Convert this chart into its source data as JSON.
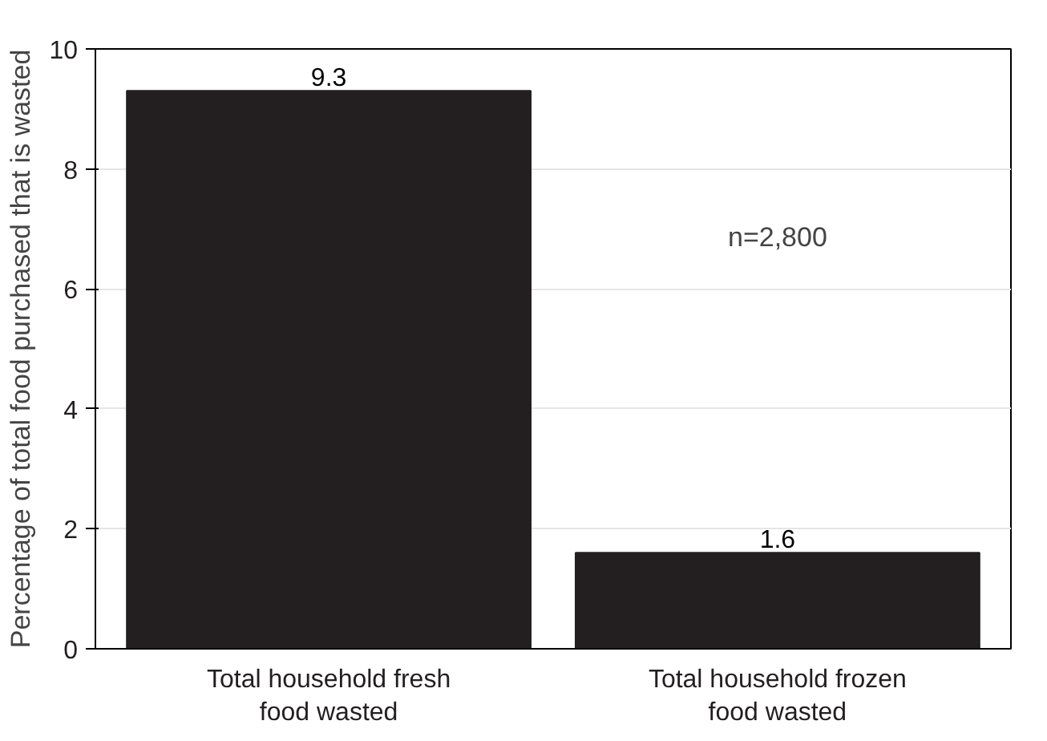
{
  "chart_data": {
    "type": "bar",
    "ylabel": "Percentage of total food purchased that is wasted",
    "categories": [
      "Total household fresh food wasted",
      "Total household frozen food wasted"
    ],
    "values": [
      9.3,
      1.6
    ],
    "color": "#231f20",
    "data_labels": true,
    "ylim": [
      0,
      10
    ],
    "yticks": [
      0,
      2,
      4,
      6,
      8,
      10
    ],
    "grid": "y",
    "annotations": [
      "n=2,800"
    ]
  }
}
